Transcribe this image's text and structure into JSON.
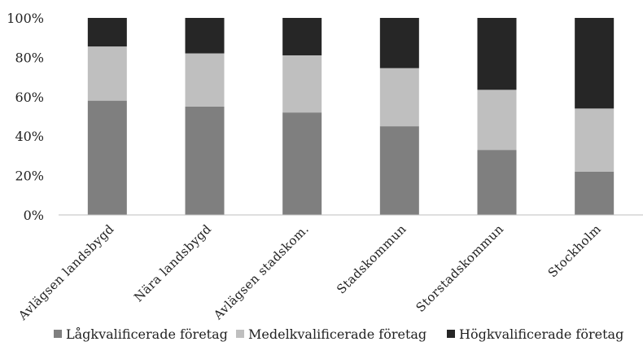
{
  "chart_data": {
    "type": "bar",
    "stacked": true,
    "percent": true,
    "categories": [
      "Avlägsen landsbygd",
      "Nära landsbygd",
      "Avlägsen stadskom.",
      "Stadskommun",
      "Storstadskommun",
      "Stockholm"
    ],
    "series": [
      {
        "name": "Lågkvalificerade företag",
        "color": "#7f7f7f",
        "values": [
          58,
          55,
          52,
          45,
          33,
          22
        ]
      },
      {
        "name": "Medelkvalificerade företag",
        "color": "#bfbfbf",
        "values": [
          27.5,
          27,
          29,
          29.5,
          30.5,
          32
        ]
      },
      {
        "name": "Högkvalificerade företag",
        "color": "#262626",
        "values": [
          14.5,
          18,
          19,
          25.5,
          36.5,
          46
        ]
      }
    ],
    "yticks": [
      "0%",
      "20%",
      "40%",
      "60%",
      "80%",
      "100%"
    ],
    "ylim": [
      0,
      100
    ],
    "grid": false,
    "legend_position": "bottom",
    "title": "",
    "xlabel": "",
    "ylabel": ""
  }
}
